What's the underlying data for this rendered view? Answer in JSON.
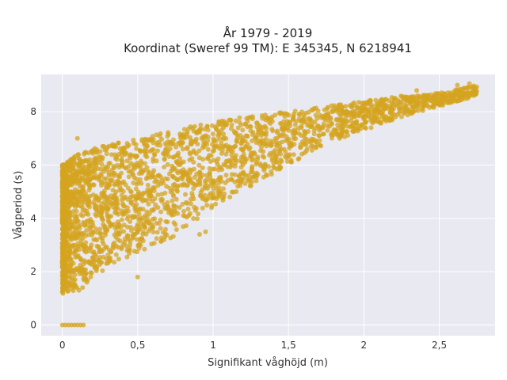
{
  "chart_data": {
    "type": "scatter",
    "title": "År 1979 - 2019",
    "subtitle": "Koordinat (Sweref 99 TM): E 345345, N 6218941",
    "xlabel": "Signifikant våghöjd (m)",
    "ylabel": "Vågperiod (s)",
    "xlim": [
      -0.14,
      2.87
    ],
    "ylim": [
      -0.4,
      9.4
    ],
    "x_ticks": [
      0,
      0.5,
      1,
      1.5,
      2,
      2.5
    ],
    "x_tick_labels": [
      "0",
      "0,5",
      "1",
      "1,5",
      "2",
      "2,5"
    ],
    "y_ticks": [
      0,
      2,
      4,
      6,
      8
    ],
    "y_tick_labels": [
      "0",
      "2",
      "4",
      "6",
      "8"
    ],
    "grid": true,
    "legend": "none",
    "colors": {
      "marker": "#d4a420",
      "plot_bg": "#e9e9f1",
      "grid": "#ffffff"
    },
    "envelope": {
      "upper": [
        [
          0,
          6.0
        ],
        [
          0.1,
          6.4
        ],
        [
          0.25,
          6.7
        ],
        [
          0.5,
          7.0
        ],
        [
          0.75,
          7.35
        ],
        [
          1.0,
          7.6
        ],
        [
          1.25,
          7.85
        ],
        [
          1.5,
          8.0
        ],
        [
          1.75,
          8.2
        ],
        [
          2.0,
          8.4
        ],
        [
          2.25,
          8.6
        ],
        [
          2.5,
          8.7
        ],
        [
          2.75,
          9.0
        ]
      ],
      "lower": [
        [
          0,
          1.1
        ],
        [
          0.1,
          1.2
        ],
        [
          0.2,
          1.6
        ],
        [
          0.3,
          2.2
        ],
        [
          0.5,
          2.7
        ],
        [
          0.75,
          3.3
        ],
        [
          1.0,
          4.4
        ],
        [
          1.25,
          5.2
        ],
        [
          1.5,
          6.0
        ],
        [
          1.75,
          6.8
        ],
        [
          2.0,
          7.3
        ],
        [
          2.25,
          7.8
        ],
        [
          2.5,
          8.2
        ],
        [
          2.75,
          8.6
        ]
      ]
    },
    "zero_period_points": [
      [
        0.0,
        0
      ],
      [
        0.02,
        0
      ],
      [
        0.04,
        0
      ],
      [
        0.06,
        0
      ],
      [
        0.08,
        0
      ],
      [
        0.1,
        0
      ],
      [
        0.12,
        0
      ],
      [
        0.14,
        0
      ]
    ],
    "outliers": [
      [
        0.5,
        1.8
      ],
      [
        0.91,
        3.4
      ],
      [
        0.95,
        3.5
      ],
      [
        0.3,
        4.8
      ],
      [
        0.35,
        5.3
      ],
      [
        0.55,
        4.1
      ],
      [
        0.1,
        7.0
      ],
      [
        2.62,
        9.0
      ],
      [
        2.7,
        9.05
      ],
      [
        2.74,
        8.8
      ],
      [
        2.58,
        8.5
      ],
      [
        2.45,
        8.4
      ],
      [
        2.35,
        8.8
      ],
      [
        1.85,
        7.7
      ],
      [
        2.05,
        7.9
      ]
    ],
    "sample_count": 2800,
    "random_seed": 42
  }
}
